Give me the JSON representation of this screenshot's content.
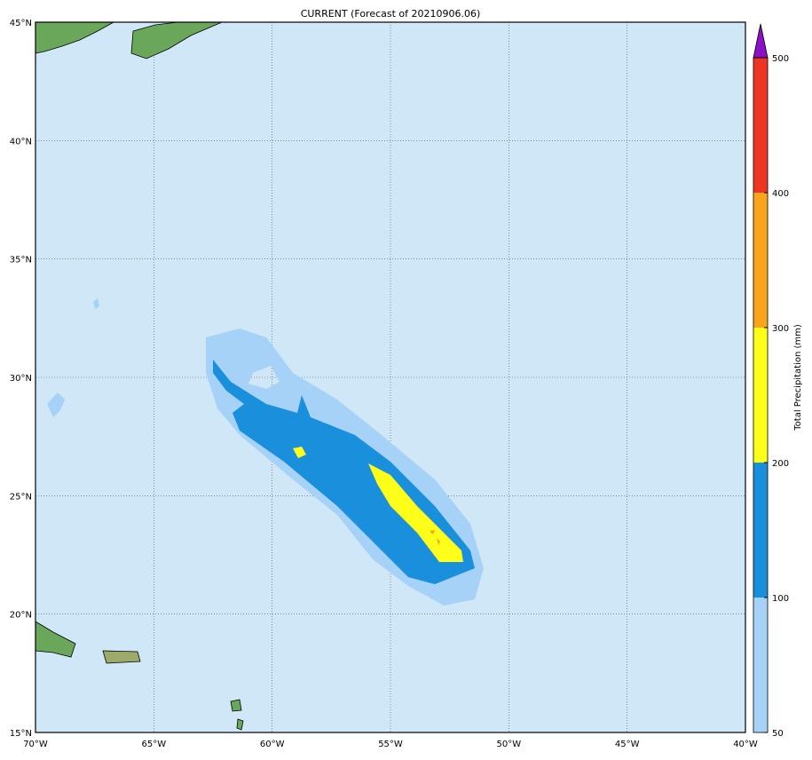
{
  "map": {
    "title": "CURRENT (Forecast of 20210906.06)",
    "xlim": [
      -70,
      -40
    ],
    "ylim": [
      15,
      45
    ],
    "xticks": [
      {
        "value": -70,
        "label": "70°W"
      },
      {
        "value": -65,
        "label": "65°W"
      },
      {
        "value": -60,
        "label": "60°W"
      },
      {
        "value": -55,
        "label": "55°W"
      },
      {
        "value": -50,
        "label": "50°W"
      },
      {
        "value": -45,
        "label": "45°W"
      },
      {
        "value": -40,
        "label": "40°W"
      }
    ],
    "yticks": [
      {
        "value": 15,
        "label": "15°N"
      },
      {
        "value": 20,
        "label": "20°N"
      },
      {
        "value": 25,
        "label": "25°N"
      },
      {
        "value": 30,
        "label": "30°N"
      },
      {
        "value": 35,
        "label": "35°N"
      },
      {
        "value": 40,
        "label": "40°N"
      },
      {
        "value": 45,
        "label": "45°N"
      }
    ],
    "grid": true,
    "colorbar": {
      "label": "Total Precipitation (mm)",
      "levels": [
        50,
        100,
        200,
        300,
        400,
        500
      ],
      "colors": [
        "#a6d2f7",
        "#1a8fdc",
        "#ffff1a",
        "#f8a51d",
        "#ee3522"
      ],
      "extend_color": "#8c10c8"
    }
  }
}
